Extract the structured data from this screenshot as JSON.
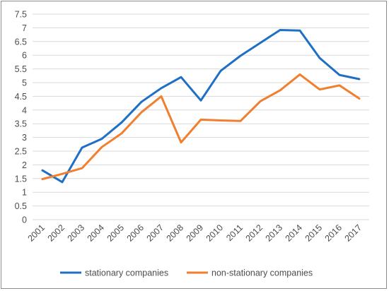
{
  "chart_data": {
    "type": "line",
    "title": "",
    "xlabel": "",
    "ylabel": "",
    "x": [
      "2001",
      "2002",
      "2003",
      "2004",
      "2005",
      "2006",
      "2007",
      "2008",
      "2009",
      "2010",
      "2011",
      "2012",
      "2013",
      "2014",
      "2015",
      "2016",
      "2017"
    ],
    "ylim": [
      0,
      7.5
    ],
    "yticks": [
      "0",
      "0.5",
      "1",
      "1.5",
      "2",
      "2.5",
      "3",
      "3.5",
      "4",
      "4.5",
      "5",
      "5.5",
      "6",
      "6.5",
      "7",
      "7.5"
    ],
    "grid": "horizontal",
    "legend_position": "bottom",
    "series": [
      {
        "name": "stationary companies",
        "color": "#1f6fc5",
        "values": [
          1.8,
          1.37,
          2.63,
          2.95,
          3.55,
          4.3,
          4.8,
          5.2,
          4.35,
          5.43,
          5.98,
          6.45,
          6.92,
          6.9,
          5.9,
          5.28,
          5.13
        ]
      },
      {
        "name": "non-stationary companies",
        "color": "#f07f2f",
        "values": [
          1.48,
          1.67,
          1.88,
          2.65,
          3.15,
          3.92,
          4.5,
          2.82,
          3.65,
          3.62,
          3.6,
          4.32,
          4.72,
          5.3,
          4.75,
          4.9,
          4.42
        ]
      }
    ]
  }
}
